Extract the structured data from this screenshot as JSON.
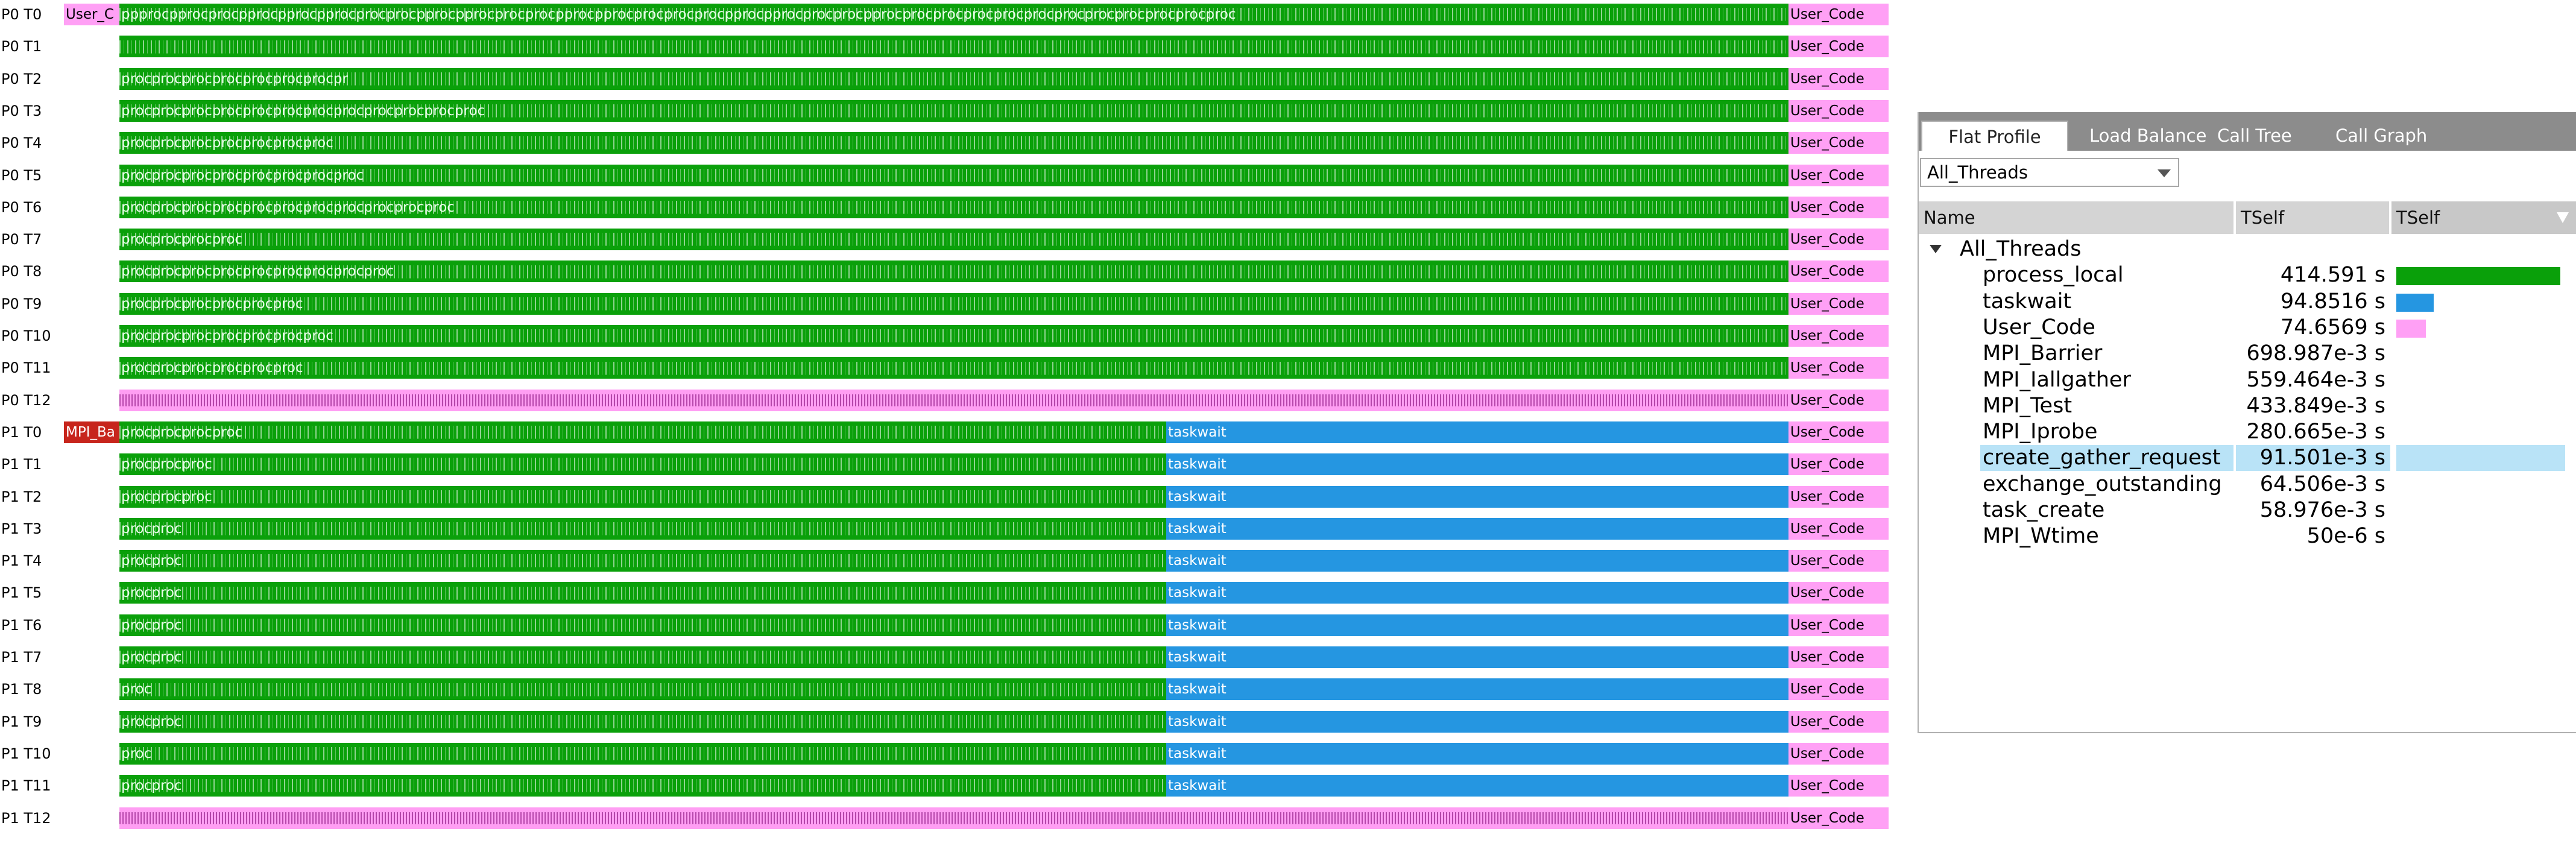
{
  "timeline": {
    "rows": [
      {
        "label": "P0 T0",
        "segments": [
          {
            "type": "pink",
            "text": "User_C"
          },
          {
            "type": "green",
            "text": "ppprocpprocprocpprocpprocpprocprocprocpprocpprocprocprocpprocpprocprocprocprocpprocpprocprocprocpprocprocprocprocprocprocprocprocprocprocprocproc"
          },
          {
            "type": "pink",
            "text": "User_Code"
          }
        ]
      },
      {
        "label": "P0 T1",
        "segments": [
          {
            "type": "green",
            "text": ""
          },
          {
            "type": "pink",
            "text": "User_Code"
          }
        ]
      },
      {
        "label": "P0 T2",
        "segments": [
          {
            "type": "green",
            "text": "procprocprocprocprocprocprocpr"
          },
          {
            "type": "pink",
            "text": "User_Code"
          }
        ]
      },
      {
        "label": "P0 T3",
        "segments": [
          {
            "type": "green",
            "text": "procprocprocprocprocprocprocprocprocprocprocproc"
          },
          {
            "type": "pink",
            "text": "User_Code"
          }
        ]
      },
      {
        "label": "P0 T4",
        "segments": [
          {
            "type": "green",
            "text": "procprocprocprocprocprocproc"
          },
          {
            "type": "pink",
            "text": "User_Code"
          }
        ]
      },
      {
        "label": "P0 T5",
        "segments": [
          {
            "type": "green",
            "text": "procprocprocprocprocprocprocproc"
          },
          {
            "type": "pink",
            "text": "User_Code"
          }
        ]
      },
      {
        "label": "P0 T6",
        "segments": [
          {
            "type": "green",
            "text": "procprocprocprocprocprocprocprocprocprocproc"
          },
          {
            "type": "pink",
            "text": "User_Code"
          }
        ]
      },
      {
        "label": "P0 T7",
        "segments": [
          {
            "type": "green",
            "text": "procprocprocproc"
          },
          {
            "type": "pink",
            "text": "User_Code"
          }
        ]
      },
      {
        "label": "P0 T8",
        "segments": [
          {
            "type": "green",
            "text": "procprocprocprocprocprocprocprocproc"
          },
          {
            "type": "pink",
            "text": "User_Code"
          }
        ]
      },
      {
        "label": "P0 T9",
        "segments": [
          {
            "type": "green",
            "text": "procprocprocprocprocproc"
          },
          {
            "type": "pink",
            "text": "User_Code"
          }
        ]
      },
      {
        "label": "P0 T10",
        "segments": [
          {
            "type": "green",
            "text": "procprocprocprocprocprocproc"
          },
          {
            "type": "pink",
            "text": "User_Code"
          }
        ]
      },
      {
        "label": "P0 T11",
        "segments": [
          {
            "type": "green",
            "text": "procprocprocprocprocproc"
          },
          {
            "type": "pink",
            "text": "User_Code"
          }
        ]
      },
      {
        "label": "P0 T12",
        "segments": [
          {
            "type": "pinkstripe",
            "text": ""
          },
          {
            "type": "pink",
            "text": "User_Code"
          }
        ]
      },
      {
        "label": "P1 T0",
        "segments": [
          {
            "type": "red",
            "text": "MPI_Ba"
          },
          {
            "type": "green",
            "text": "procprocprocproc"
          },
          {
            "type": "blue",
            "text": "taskwait"
          },
          {
            "type": "pink",
            "text": "User_Code"
          }
        ]
      },
      {
        "label": "P1 T1",
        "segments": [
          {
            "type": "green",
            "text": "procprocproc"
          },
          {
            "type": "blue",
            "text": "taskwait"
          },
          {
            "type": "pink",
            "text": "User_Code"
          }
        ]
      },
      {
        "label": "P1 T2",
        "segments": [
          {
            "type": "green",
            "text": "procprocproc"
          },
          {
            "type": "blue",
            "text": "taskwait"
          },
          {
            "type": "pink",
            "text": "User_Code"
          }
        ]
      },
      {
        "label": "P1 T3",
        "segments": [
          {
            "type": "green",
            "text": "procproc"
          },
          {
            "type": "blue",
            "text": "taskwait"
          },
          {
            "type": "pink",
            "text": "User_Code"
          }
        ]
      },
      {
        "label": "P1 T4",
        "segments": [
          {
            "type": "green",
            "text": "procproc"
          },
          {
            "type": "blue",
            "text": "taskwait"
          },
          {
            "type": "pink",
            "text": "User_Code"
          }
        ]
      },
      {
        "label": "P1 T5",
        "segments": [
          {
            "type": "green",
            "text": "procproc"
          },
          {
            "type": "blue",
            "text": "taskwait"
          },
          {
            "type": "pink",
            "text": "User_Code"
          }
        ]
      },
      {
        "label": "P1 T6",
        "segments": [
          {
            "type": "green",
            "text": "procproc"
          },
          {
            "type": "blue",
            "text": "taskwait"
          },
          {
            "type": "pink",
            "text": "User_Code"
          }
        ]
      },
      {
        "label": "P1 T7",
        "segments": [
          {
            "type": "green",
            "text": "procproc"
          },
          {
            "type": "blue",
            "text": "taskwait"
          },
          {
            "type": "pink",
            "text": "User_Code"
          }
        ]
      },
      {
        "label": "P1 T8",
        "segments": [
          {
            "type": "green",
            "text": "proc"
          },
          {
            "type": "blue",
            "text": "taskwait"
          },
          {
            "type": "pink",
            "text": "User_Code"
          }
        ]
      },
      {
        "label": "P1 T9",
        "segments": [
          {
            "type": "green",
            "text": "procproc"
          },
          {
            "type": "blue",
            "text": "taskwait"
          },
          {
            "type": "pink",
            "text": "User_Code"
          }
        ]
      },
      {
        "label": "P1 T10",
        "segments": [
          {
            "type": "green",
            "text": "proc"
          },
          {
            "type": "blue",
            "text": "taskwait"
          },
          {
            "type": "pink",
            "text": "User_Code"
          }
        ]
      },
      {
        "label": "P1 T11",
        "segments": [
          {
            "type": "green",
            "text": "procproc"
          },
          {
            "type": "blue",
            "text": "taskwait"
          },
          {
            "type": "pink",
            "text": "User_Code"
          }
        ]
      },
      {
        "label": "P1 T12",
        "segments": [
          {
            "type": "pinkstripe",
            "text": ""
          },
          {
            "type": "pink",
            "text": "User_Code"
          }
        ]
      }
    ]
  },
  "panel": {
    "tabs": [
      {
        "label": "Flat Profile",
        "active": true
      },
      {
        "label": "Load Balance",
        "active": false
      },
      {
        "label": "Call Tree",
        "active": false
      },
      {
        "label": "Call Graph",
        "active": false
      }
    ],
    "thread_select": {
      "value": "All_Threads"
    },
    "columns": {
      "name": "Name",
      "tself": "TSelf",
      "tself_bar": "TSelf"
    },
    "tree": {
      "root": "All_Threads",
      "items": [
        {
          "name": "process_local",
          "value": "414.591 s",
          "fraction": 1.0,
          "color": "#0aa00a"
        },
        {
          "name": "taskwait",
          "value": "94.8516 s",
          "fraction": 0.229,
          "color": "#2596e1"
        },
        {
          "name": "User_Code",
          "value": "74.6569 s",
          "fraction": 0.18,
          "color": "#ffa0f5"
        },
        {
          "name": "MPI_Barrier",
          "value": "698.987e-3 s",
          "fraction": 0.0017,
          "color": "#c7251c"
        },
        {
          "name": "MPI_Iallgather",
          "value": "559.464e-3 s",
          "fraction": 0.0013,
          "color": "#8a8a8a"
        },
        {
          "name": "MPI_Test",
          "value": "433.849e-3 s",
          "fraction": 0.001,
          "color": "#8a8a8a"
        },
        {
          "name": "MPI_Iprobe",
          "value": "280.665e-3 s",
          "fraction": 0.0007,
          "color": "#8a8a8a"
        },
        {
          "name": "create_gather_request",
          "value": "91.501e-3 s",
          "fraction": 0.0002,
          "color": "#4aa6d8",
          "selected": true
        },
        {
          "name": "exchange_outstanding",
          "value": "64.506e-3 s",
          "fraction": 0.00016,
          "color": "#8a8a8a"
        },
        {
          "name": "task_create",
          "value": "58.976e-3 s",
          "fraction": 0.00014,
          "color": "#8a8a8a"
        },
        {
          "name": "MPI_Wtime",
          "value": "50e-6 s",
          "fraction": 1e-07,
          "color": "#8a8a8a"
        }
      ]
    }
  }
}
